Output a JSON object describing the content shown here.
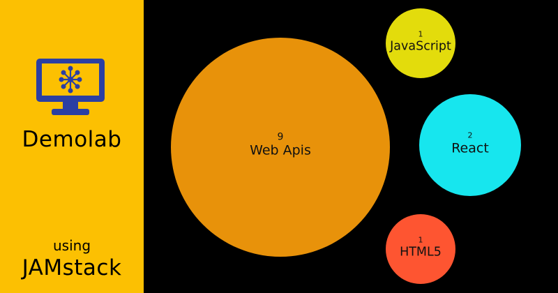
{
  "sidebar": {
    "title": "Demolab",
    "subtitle": "using",
    "tagline": "JAMstack",
    "logo_icon": "monitor-network-icon",
    "background": "#fcc002"
  },
  "chart_data": {
    "type": "bubble",
    "series": [
      {
        "name": "Web Apis",
        "count": 9,
        "color": "#e8920a"
      },
      {
        "name": "JavaScript",
        "count": 1,
        "color": "#e3dc0c"
      },
      {
        "name": "React",
        "count": 2,
        "color": "#17e6ee"
      },
      {
        "name": "HTML5",
        "count": 1,
        "color": "#fe5531"
      }
    ]
  }
}
